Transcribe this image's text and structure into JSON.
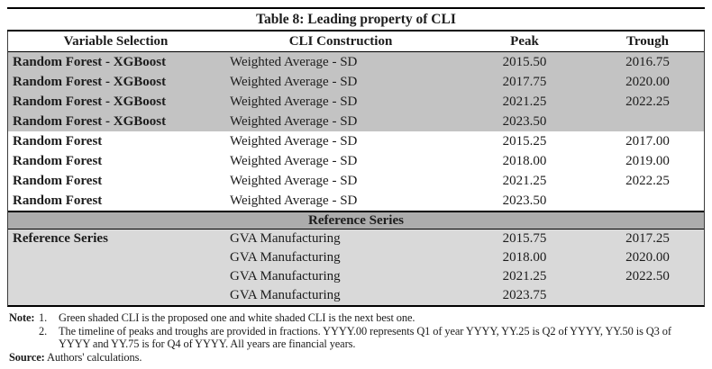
{
  "table": {
    "title": "Table 8: Leading property of CLI",
    "columns": [
      "Variable Selection",
      "CLI Construction",
      "Peak",
      "Trough"
    ],
    "sections": [
      {
        "name": "proposed-cli-shaded",
        "rows": [
          {
            "variable": "Random Forest - XGBoost",
            "construction": "Weighted Average - SD",
            "peak": "2015.50",
            "trough": "2016.75"
          },
          {
            "variable": "Random Forest - XGBoost",
            "construction": "Weighted Average - SD",
            "peak": "2017.75",
            "trough": "2020.00"
          },
          {
            "variable": "Random Forest - XGBoost",
            "construction": "Weighted Average - SD",
            "peak": "2021.25",
            "trough": "2022.25"
          },
          {
            "variable": "Random Forest - XGBoost",
            "construction": "Weighted Average - SD",
            "peak": "2023.50",
            "trough": ""
          }
        ]
      },
      {
        "name": "next-best-cli-white",
        "rows": [
          {
            "variable": "Random Forest",
            "construction": "Weighted Average - SD",
            "peak": "2015.25",
            "trough": "2017.00"
          },
          {
            "variable": "Random Forest",
            "construction": "Weighted Average - SD",
            "peak": "2018.00",
            "trough": "2019.00"
          },
          {
            "variable": "Random Forest",
            "construction": "Weighted Average - SD",
            "peak": "2021.25",
            "trough": "2022.25"
          },
          {
            "variable": "Random Forest",
            "construction": "Weighted Average - SD",
            "peak": "2023.50",
            "trough": ""
          }
        ]
      }
    ],
    "band_label": "Reference Series",
    "reference_rows": [
      {
        "variable": "Reference Series",
        "construction": "GVA Manufacturing",
        "peak": "2015.75",
        "trough": "2017.25"
      },
      {
        "variable": "",
        "construction": "GVA Manufacturing",
        "peak": "2018.00",
        "trough": "2020.00"
      },
      {
        "variable": "",
        "construction": "GVA Manufacturing",
        "peak": "2021.25",
        "trough": "2022.50"
      },
      {
        "variable": "",
        "construction": "GVA Manufacturing",
        "peak": "2023.75",
        "trough": ""
      }
    ]
  },
  "notes": {
    "note_label": "Note:",
    "items": [
      {
        "num": "1.",
        "text": "Green shaded CLI is the proposed one and white shaded CLI is the next best one."
      },
      {
        "num": "2.",
        "text": "The timeline of peaks and troughs are provided in fractions. YYYY.00 represents Q1 of year YYYY, YY.25 is Q2 of YYYY, YY.50 is Q3 of YYYY and YY.75 is for Q4 of YYYY. All years are financial years."
      }
    ],
    "source_label": "Source:",
    "source_text": "Authors' calculations."
  },
  "colors": {
    "shade_proposed": "#c3c3c3",
    "shade_band": "#acacac",
    "shade_reference": "#d9d9d9",
    "rule": "#000000"
  }
}
